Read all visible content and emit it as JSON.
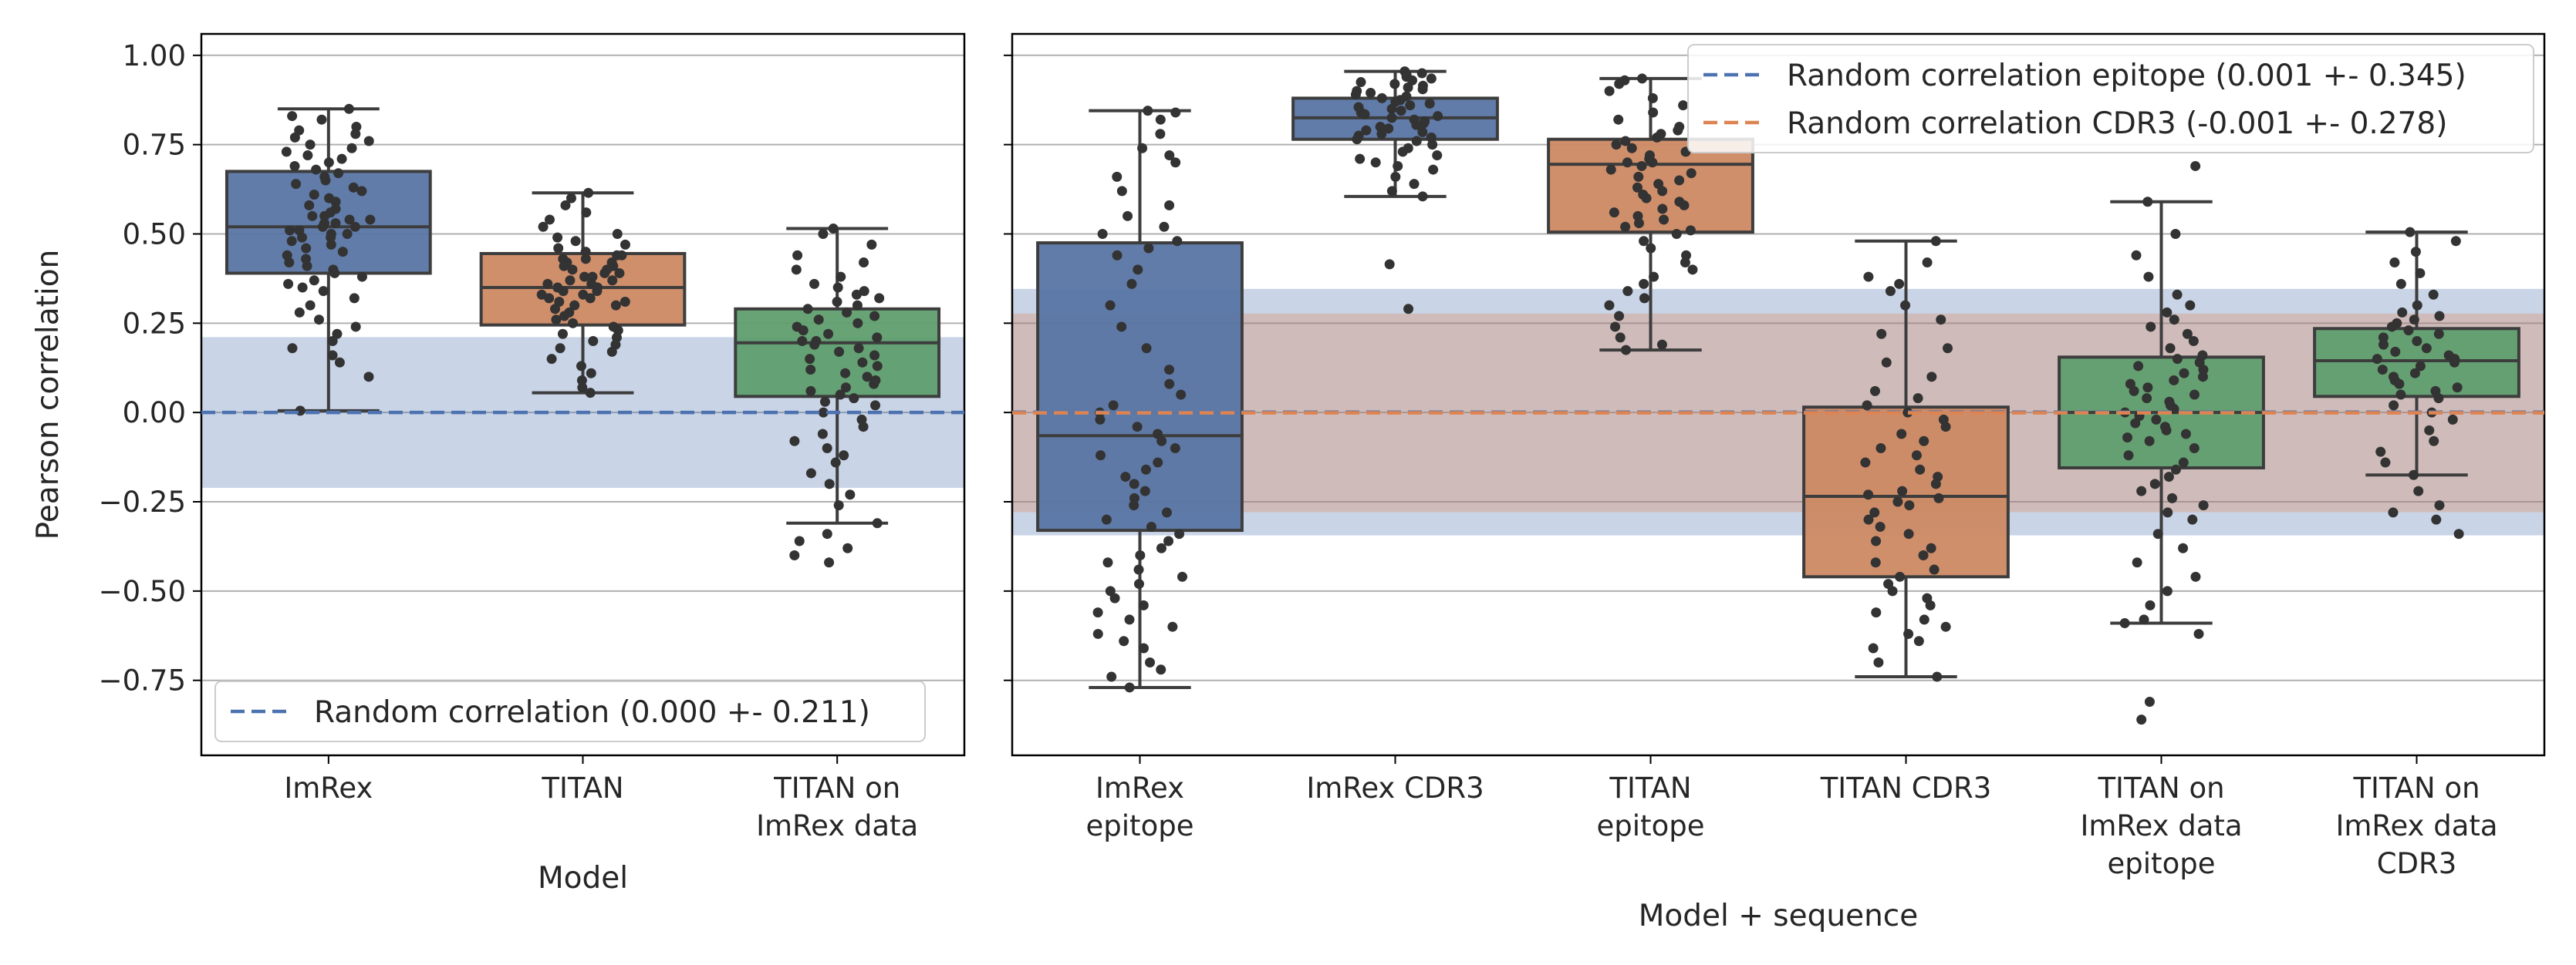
{
  "chart_data": [
    {
      "type": "box",
      "xlabel": "Model",
      "ylabel": "Pearson correlation",
      "ylim": [
        -0.96,
        1.06
      ],
      "yticks": [
        1.0,
        0.75,
        0.5,
        0.25,
        0.0,
        -0.25,
        -0.5,
        -0.75
      ],
      "ytick_labels": [
        "1.00",
        "0.75",
        "0.50",
        "0.25",
        "0.00",
        "−0.25",
        "−0.50",
        "−0.75"
      ],
      "grid": "horizontal",
      "legend": {
        "placement": "lower-left",
        "entries": [
          {
            "label": "Random correlation (0.000 +- 0.211)",
            "color": "#4c72b0",
            "style": "dashed"
          }
        ]
      },
      "bands": [
        {
          "center": 0.0,
          "halfwidth": 0.211,
          "color": "#4c72b0"
        }
      ],
      "series": [
        {
          "label_lines": [
            "ImRex"
          ],
          "color": "#4c72b0",
          "box": {
            "whislo": 0.005,
            "q1": 0.39,
            "median": 0.52,
            "q3": 0.675,
            "whishi": 0.85
          },
          "outliers": [],
          "points": [
            0.85,
            0.83,
            0.82,
            0.8,
            0.79,
            0.78,
            0.77,
            0.76,
            0.75,
            0.74,
            0.73,
            0.72,
            0.71,
            0.7,
            0.69,
            0.68,
            0.67,
            0.66,
            0.65,
            0.64,
            0.63,
            0.62,
            0.61,
            0.6,
            0.59,
            0.58,
            0.57,
            0.56,
            0.55,
            0.55,
            0.54,
            0.54,
            0.53,
            0.53,
            0.52,
            0.52,
            0.51,
            0.51,
            0.5,
            0.5,
            0.49,
            0.49,
            0.48,
            0.47,
            0.46,
            0.45,
            0.44,
            0.43,
            0.42,
            0.41,
            0.4,
            0.39,
            0.38,
            0.37,
            0.36,
            0.35,
            0.34,
            0.32,
            0.3,
            0.28,
            0.26,
            0.24,
            0.22,
            0.2,
            0.18,
            0.16,
            0.14,
            0.1,
            0.005
          ]
        },
        {
          "label_lines": [
            "TITAN"
          ],
          "color": "#dd8452",
          "box": {
            "whislo": 0.055,
            "q1": 0.245,
            "median": 0.35,
            "q3": 0.445,
            "whishi": 0.615
          },
          "outliers": [],
          "points": [
            0.615,
            0.6,
            0.58,
            0.56,
            0.54,
            0.52,
            0.5,
            0.49,
            0.48,
            0.47,
            0.46,
            0.45,
            0.44,
            0.44,
            0.43,
            0.43,
            0.42,
            0.42,
            0.41,
            0.41,
            0.4,
            0.4,
            0.39,
            0.39,
            0.38,
            0.38,
            0.37,
            0.37,
            0.36,
            0.36,
            0.35,
            0.35,
            0.34,
            0.34,
            0.33,
            0.33,
            0.32,
            0.32,
            0.31,
            0.31,
            0.3,
            0.3,
            0.29,
            0.28,
            0.27,
            0.26,
            0.25,
            0.24,
            0.23,
            0.22,
            0.21,
            0.2,
            0.19,
            0.18,
            0.17,
            0.15,
            0.13,
            0.11,
            0.09,
            0.07,
            0.055
          ]
        },
        {
          "label_lines": [
            "TITAN on",
            "ImRex data"
          ],
          "color": "#55a868",
          "box": {
            "whislo": -0.31,
            "q1": 0.045,
            "median": 0.195,
            "q3": 0.29,
            "whishi": 0.515
          },
          "outliers": [
            -0.34,
            -0.36,
            -0.38,
            -0.4,
            -0.42
          ],
          "points": [
            0.515,
            0.5,
            0.47,
            0.44,
            0.42,
            0.4,
            0.38,
            0.36,
            0.35,
            0.34,
            0.33,
            0.32,
            0.31,
            0.3,
            0.29,
            0.28,
            0.27,
            0.26,
            0.25,
            0.24,
            0.23,
            0.22,
            0.21,
            0.2,
            0.2,
            0.19,
            0.18,
            0.17,
            0.16,
            0.15,
            0.14,
            0.13,
            0.12,
            0.11,
            0.1,
            0.09,
            0.08,
            0.07,
            0.06,
            0.05,
            0.04,
            0.03,
            0.02,
            0.0,
            -0.02,
            -0.04,
            -0.06,
            -0.08,
            -0.1,
            -0.12,
            -0.14,
            -0.17,
            -0.2,
            -0.23,
            -0.26,
            -0.31,
            -0.34,
            -0.36,
            -0.38,
            -0.4,
            -0.42
          ]
        }
      ]
    },
    {
      "type": "box",
      "xlabel": "Model + sequence",
      "ylabel": "",
      "ylim": [
        -0.96,
        1.06
      ],
      "yticks": [
        1.0,
        0.75,
        0.5,
        0.25,
        0.0,
        -0.25,
        -0.5,
        -0.75
      ],
      "grid": "horizontal",
      "legend": {
        "placement": "top-right",
        "entries": [
          {
            "label": "Random correlation epitope (0.001 +- 0.345)",
            "color": "#4c72b0",
            "style": "dashed"
          },
          {
            "label": "Random correlation CDR3 (-0.001 +- 0.278)",
            "color": "#dd8452",
            "style": "dashed"
          }
        ]
      },
      "bands": [
        {
          "center": 0.001,
          "halfwidth": 0.345,
          "color": "#4c72b0"
        },
        {
          "center": -0.001,
          "halfwidth": 0.278,
          "color": "#dd8452"
        }
      ],
      "series": [
        {
          "label_lines": [
            "ImRex",
            "epitope"
          ],
          "color": "#4c72b0",
          "box": {
            "whislo": -0.77,
            "q1": -0.33,
            "median": -0.065,
            "q3": 0.475,
            "whishi": 0.845
          },
          "outliers": [],
          "points": [
            0.845,
            0.84,
            0.82,
            0.78,
            0.74,
            0.72,
            0.7,
            0.66,
            0.62,
            0.58,
            0.55,
            0.52,
            0.5,
            0.48,
            0.46,
            0.44,
            0.4,
            0.36,
            0.3,
            0.24,
            0.18,
            0.12,
            0.08,
            0.05,
            0.02,
            0.0,
            -0.02,
            -0.04,
            -0.06,
            -0.08,
            -0.1,
            -0.12,
            -0.14,
            -0.16,
            -0.18,
            -0.2,
            -0.22,
            -0.24,
            -0.26,
            -0.28,
            -0.3,
            -0.32,
            -0.34,
            -0.36,
            -0.38,
            -0.4,
            -0.42,
            -0.44,
            -0.46,
            -0.48,
            -0.5,
            -0.52,
            -0.54,
            -0.56,
            -0.58,
            -0.6,
            -0.62,
            -0.64,
            -0.66,
            -0.7,
            -0.72,
            -0.74,
            -0.77
          ]
        },
        {
          "label_lines": [
            "ImRex CDR3"
          ],
          "color": "#4c72b0",
          "box": {
            "whislo": 0.605,
            "q1": 0.765,
            "median": 0.825,
            "q3": 0.88,
            "whishi": 0.955
          },
          "outliers": [
            0.415,
            0.29
          ],
          "points": [
            0.955,
            0.95,
            0.945,
            0.94,
            0.935,
            0.93,
            0.925,
            0.92,
            0.915,
            0.91,
            0.905,
            0.9,
            0.895,
            0.89,
            0.885,
            0.88,
            0.875,
            0.87,
            0.865,
            0.86,
            0.855,
            0.85,
            0.845,
            0.84,
            0.835,
            0.83,
            0.825,
            0.82,
            0.815,
            0.81,
            0.805,
            0.8,
            0.795,
            0.79,
            0.785,
            0.78,
            0.775,
            0.77,
            0.765,
            0.76,
            0.75,
            0.74,
            0.73,
            0.72,
            0.71,
            0.7,
            0.69,
            0.68,
            0.66,
            0.64,
            0.62,
            0.605,
            0.415,
            0.29
          ]
        },
        {
          "label_lines": [
            "TITAN",
            "epitope"
          ],
          "color": "#dd8452",
          "box": {
            "whislo": 0.175,
            "q1": 0.505,
            "median": 0.695,
            "q3": 0.765,
            "whishi": 0.935
          },
          "outliers": [],
          "points": [
            0.935,
            0.93,
            0.92,
            0.9,
            0.88,
            0.86,
            0.84,
            0.82,
            0.8,
            0.79,
            0.78,
            0.77,
            0.76,
            0.75,
            0.74,
            0.73,
            0.72,
            0.71,
            0.7,
            0.7,
            0.69,
            0.68,
            0.67,
            0.66,
            0.65,
            0.64,
            0.63,
            0.62,
            0.61,
            0.6,
            0.59,
            0.58,
            0.57,
            0.56,
            0.55,
            0.54,
            0.53,
            0.52,
            0.51,
            0.5,
            0.48,
            0.46,
            0.44,
            0.42,
            0.4,
            0.38,
            0.36,
            0.34,
            0.32,
            0.3,
            0.27,
            0.24,
            0.21,
            0.19,
            0.175
          ]
        },
        {
          "label_lines": [
            "TITAN CDR3"
          ],
          "color": "#dd8452",
          "box": {
            "whislo": -0.74,
            "q1": -0.46,
            "median": -0.235,
            "q3": 0.015,
            "whishi": 0.48
          },
          "outliers": [],
          "points": [
            0.48,
            0.42,
            0.38,
            0.36,
            0.34,
            0.3,
            0.26,
            0.22,
            0.18,
            0.14,
            0.1,
            0.06,
            0.04,
            0.02,
            0.0,
            -0.02,
            -0.04,
            -0.06,
            -0.08,
            -0.1,
            -0.12,
            -0.14,
            -0.16,
            -0.18,
            -0.2,
            -0.22,
            -0.23,
            -0.24,
            -0.25,
            -0.26,
            -0.28,
            -0.3,
            -0.32,
            -0.34,
            -0.36,
            -0.38,
            -0.4,
            -0.42,
            -0.44,
            -0.46,
            -0.48,
            -0.5,
            -0.52,
            -0.54,
            -0.56,
            -0.58,
            -0.6,
            -0.62,
            -0.64,
            -0.66,
            -0.7,
            -0.74
          ]
        },
        {
          "label_lines": [
            "TITAN on",
            "ImRex data",
            "epitope"
          ],
          "color": "#55a868",
          "box": {
            "whislo": -0.59,
            "q1": -0.155,
            "median": 0.0,
            "q3": 0.155,
            "whishi": 0.59
          },
          "outliers": [
            0.69,
            -0.62,
            -0.81,
            -0.86
          ],
          "points": [
            0.59,
            0.5,
            0.44,
            0.38,
            0.33,
            0.3,
            0.28,
            0.26,
            0.24,
            0.22,
            0.2,
            0.18,
            0.16,
            0.15,
            0.14,
            0.13,
            0.12,
            0.11,
            0.1,
            0.09,
            0.08,
            0.07,
            0.06,
            0.05,
            0.04,
            0.03,
            0.02,
            0.01,
            0.0,
            -0.01,
            -0.02,
            -0.03,
            -0.04,
            -0.05,
            -0.06,
            -0.07,
            -0.08,
            -0.1,
            -0.12,
            -0.14,
            -0.16,
            -0.18,
            -0.2,
            -0.22,
            -0.24,
            -0.26,
            -0.28,
            -0.3,
            -0.34,
            -0.38,
            -0.42,
            -0.46,
            -0.5,
            -0.54,
            -0.58,
            -0.59,
            0.69,
            -0.62,
            -0.81,
            -0.86
          ]
        },
        {
          "label_lines": [
            "TITAN on",
            "ImRex data",
            "CDR3"
          ],
          "color": "#55a868",
          "box": {
            "whislo": -0.175,
            "q1": 0.045,
            "median": 0.145,
            "q3": 0.235,
            "whishi": 0.505
          },
          "outliers": [
            -0.22,
            -0.26,
            -0.28,
            -0.3,
            -0.34
          ],
          "points": [
            0.505,
            0.48,
            0.45,
            0.42,
            0.39,
            0.36,
            0.33,
            0.3,
            0.28,
            0.27,
            0.26,
            0.25,
            0.24,
            0.23,
            0.22,
            0.21,
            0.2,
            0.19,
            0.18,
            0.17,
            0.16,
            0.15,
            0.15,
            0.14,
            0.13,
            0.12,
            0.11,
            0.1,
            0.09,
            0.08,
            0.07,
            0.06,
            0.05,
            0.04,
            0.02,
            0.0,
            -0.02,
            -0.05,
            -0.08,
            -0.11,
            -0.14,
            -0.175,
            -0.22,
            -0.26,
            -0.28,
            -0.3,
            -0.34
          ]
        }
      ]
    }
  ]
}
